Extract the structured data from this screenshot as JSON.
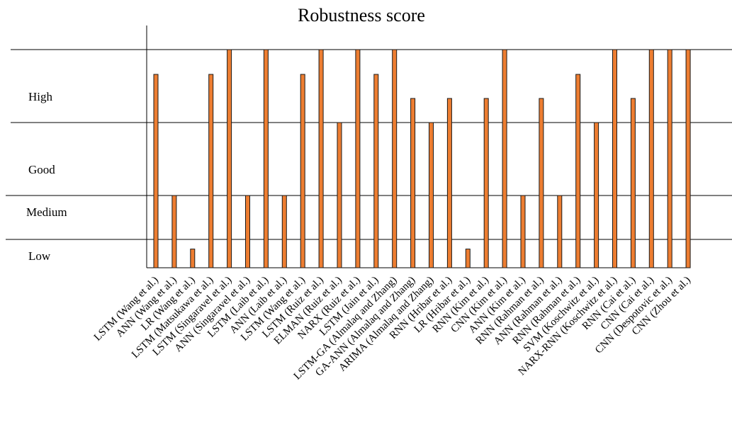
{
  "chart_data": {
    "type": "bar",
    "title": "Robustness score",
    "levels": [
      "Low",
      "Medium",
      "Good",
      "High"
    ],
    "ylim": [
      0,
      4
    ],
    "grid": true,
    "bar_color": "#ED7D31",
    "categories": [
      "LSTM (Wang et al.)",
      "ANN (Wang et al.)",
      "LR (Wang et al.)",
      "LSTM (Matsukawa et al.)",
      "LSTM (Singaravel et al.)",
      "ANN (Singaravel et al.)",
      "LSTM (Laib et al.)",
      "ANN (Laib et al.)",
      "LSTM (Wang et al.)",
      "LSTM (Ruiz et al.)",
      "ELMAN (Ruiz et al.)",
      "NARX (Ruiz et al.)",
      "LSTM (Jain et al.)",
      "LSTM-GA (Almalaq and Zhang)",
      "GA-ANN (Almalaq and Zhang)",
      "ARIMA (Almalaq and Zhang)",
      "RNN (Hribar et al.)",
      "LR (Hribar et al.)",
      "RNN (Kim et al.)",
      "CNN (Kim et al.)",
      "ANN (Kim et al.)",
      "RNN (Rahman et al.)",
      "ANN (Rahman et al.)",
      "RNN (Rahman et al.)",
      "SVM (Koschwitz et al.)",
      "NARX-RNN (Koschwitz et al.)",
      "RNN (Cai  et al.)",
      "CNN (Cai  et al.)",
      "CNN (Despotovic et al.)",
      "CNN (Zhou et al.)"
    ],
    "values": [
      3.66,
      2.0,
      0.66,
      3.66,
      4.0,
      2.0,
      4.0,
      2.0,
      3.66,
      4.0,
      3.0,
      4.0,
      3.66,
      4.0,
      3.33,
      3.0,
      3.33,
      0.66,
      3.33,
      4.0,
      2.0,
      3.33,
      2.0,
      3.66,
      3.0,
      4.0,
      3.33,
      4.0,
      4.0,
      4.0
    ]
  }
}
